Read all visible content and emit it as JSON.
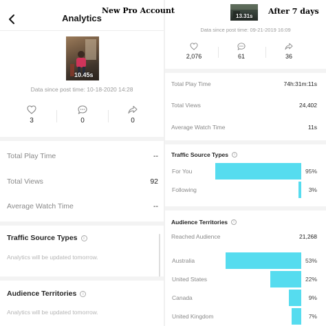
{
  "captions": {
    "left": "New Pro Account",
    "right": "After 7 days"
  },
  "left": {
    "header": {
      "title": "Analytics"
    },
    "video": {
      "duration": "10.45s"
    },
    "date_line": "Data since post time: 10-18-2020 14:28",
    "stats": {
      "likes": "3",
      "comments": "0",
      "shares": "0"
    },
    "metrics": [
      {
        "label": "Total Play Time",
        "value": "--"
      },
      {
        "label": "Total Views",
        "value": "92"
      },
      {
        "label": "Average Watch Time",
        "value": "--"
      }
    ],
    "traffic": {
      "title": "Traffic Source Types",
      "note": "Analytics will be updated tomorrow."
    },
    "territories": {
      "title": "Audience Territories",
      "note": "Analytics will be updated tomorrow."
    }
  },
  "right": {
    "video": {
      "duration": "13.31s"
    },
    "date_line": "Data since post time: 09-21-2019 16:09",
    "stats": {
      "likes": "2,076",
      "comments": "61",
      "shares": "36"
    },
    "metrics": [
      {
        "label": "Total Play Time",
        "value": "74h:31m:11s"
      },
      {
        "label": "Total Views",
        "value": "24,402"
      },
      {
        "label": "Average Watch Time",
        "value": "11s"
      }
    ],
    "traffic": {
      "title": "Traffic Source Types",
      "items": [
        {
          "label": "For You",
          "percent": "95%",
          "value": 95
        },
        {
          "label": "Following",
          "percent": "3%",
          "value": 3
        }
      ]
    },
    "territories": {
      "title": "Audience Territories",
      "reached_label": "Reached Audience",
      "reached_value": "21,268",
      "items": [
        {
          "label": "Australia",
          "percent": "53%",
          "value": 53
        },
        {
          "label": "United States",
          "percent": "22%",
          "value": 22
        },
        {
          "label": "Canada",
          "percent": "9%",
          "value": 9
        },
        {
          "label": "United Kingdom",
          "percent": "7%",
          "value": 7
        }
      ]
    }
  },
  "colors": {
    "bar": "#56dcef",
    "muted_text": "#888888",
    "divider": "#f3f3f3"
  }
}
